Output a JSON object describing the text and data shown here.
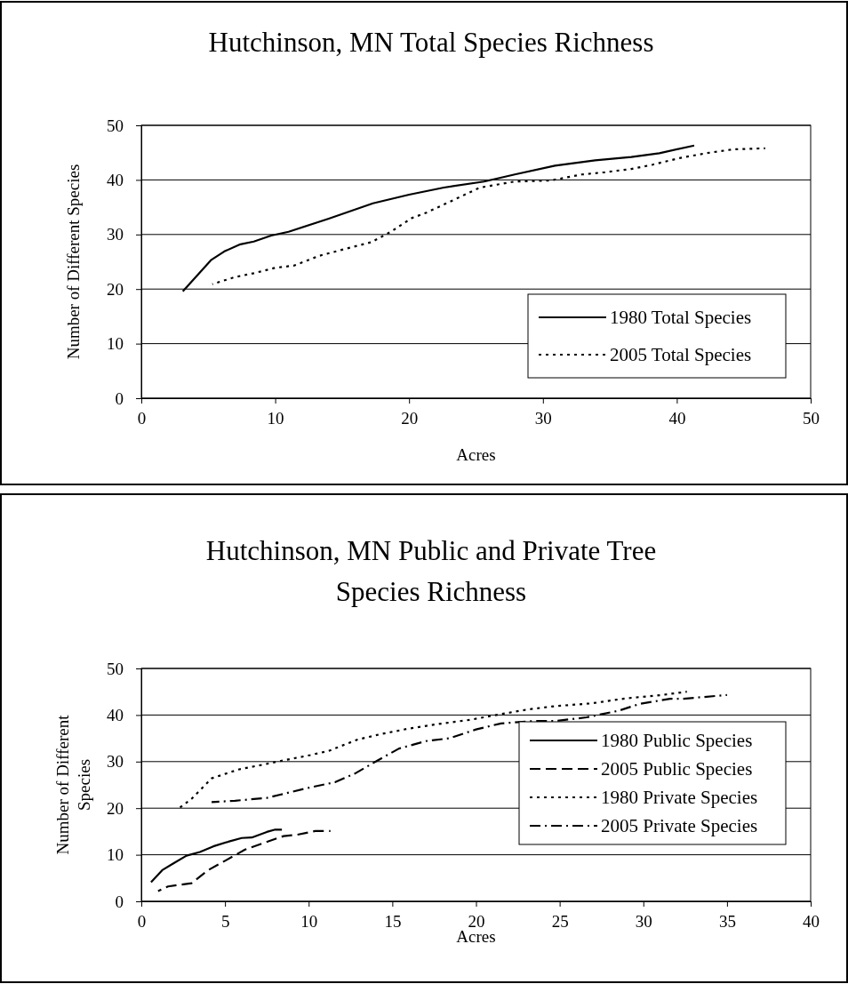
{
  "chart_data": [
    {
      "type": "line",
      "title": "Hutchinson, MN Total Species Richness",
      "xlabel": "Acres",
      "ylabel": "Number of Different Species",
      "xlim": [
        0,
        50
      ],
      "xticks": [
        0,
        10,
        20,
        30,
        40,
        50
      ],
      "ylim": [
        0,
        50
      ],
      "yticks": [
        0,
        10,
        20,
        30,
        40,
        50
      ],
      "grid": "y",
      "legend": "bottom right",
      "series": [
        {
          "name": "1980 Total Species",
          "color": "#000000",
          "line_style": "solid",
          "x": [
            3.1,
            5.2,
            6.2,
            7.4,
            8.4,
            9.7,
            11.0,
            14.0,
            17.3,
            20.0,
            22.6,
            25.6,
            27.9,
            30.9,
            33.9,
            36.6,
            38.7,
            41.3
          ],
          "values": [
            19.6,
            25.3,
            26.9,
            28.2,
            28.7,
            29.8,
            30.5,
            32.9,
            35.7,
            37.3,
            38.6,
            39.7,
            41.0,
            42.6,
            43.6,
            44.2,
            44.9,
            46.3
          ]
        },
        {
          "name": "2005 Total Species",
          "color": "#000000",
          "line_style": "dotted",
          "x": [
            5.3,
            7.0,
            8.4,
            10.0,
            11.4,
            13.3,
            15.3,
            17.2,
            18.7,
            20.2,
            21.3,
            23.3,
            25.3,
            27.9,
            30.6,
            32.9,
            34.6,
            36.6,
            38.2,
            40.2,
            42.2,
            44.2,
            46.6
          ],
          "values": [
            20.9,
            22.2,
            22.9,
            23.9,
            24.3,
            26.1,
            27.4,
            28.6,
            30.6,
            33.0,
            34.0,
            36.3,
            38.6,
            39.7,
            39.9,
            41.0,
            41.4,
            42.0,
            42.8,
            44.0,
            44.9,
            45.6,
            45.8
          ]
        }
      ]
    },
    {
      "type": "line",
      "title": "Hutchinson, MN Public and Private Tree Species Richness",
      "xlabel": "Acres",
      "ylabel": "Number of Different Species",
      "xlim": [
        0,
        40
      ],
      "xticks": [
        0,
        5,
        10,
        15,
        20,
        25,
        30,
        35,
        40
      ],
      "ylim": [
        0,
        50
      ],
      "yticks": [
        0,
        10,
        20,
        30,
        40,
        50
      ],
      "grid": "y",
      "legend": "right",
      "series": [
        {
          "name": "1980 Public Species",
          "color": "#000000",
          "line_style": "solid",
          "x": [
            0.58,
            1.25,
            1.9,
            2.7,
            3.5,
            4.3,
            5.2,
            6.0,
            6.6,
            7.5,
            8.0,
            8.4
          ],
          "values": [
            4.1,
            6.7,
            8.1,
            9.8,
            10.6,
            11.8,
            12.8,
            13.6,
            13.7,
            14.9,
            15.4,
            15.4
          ]
        },
        {
          "name": "2005 Public Species",
          "color": "#000000",
          "line_style": "dashed",
          "x": [
            1.0,
            1.6,
            3.0,
            4.0,
            5.1,
            6.2,
            7.2,
            8.5,
            9.3,
            10.4,
            11.3
          ],
          "values": [
            2.2,
            3.2,
            3.9,
            6.7,
            8.9,
            11.1,
            12.4,
            14.0,
            14.3,
            15.1,
            15.1
          ]
        },
        {
          "name": "1980 Private Species",
          "color": "#000000",
          "line_style": "dotted",
          "x": [
            2.3,
            3.0,
            4.2,
            5.8,
            7.2,
            8.7,
            10.1,
            11.2,
            12.9,
            14.3,
            16.0,
            17.6,
            19.7,
            21.5,
            23.1,
            24.7,
            26.9,
            29.0,
            31.1,
            32.6
          ],
          "values": [
            20.1,
            22.0,
            26.4,
            28.3,
            29.3,
            30.4,
            31.4,
            32.3,
            34.7,
            35.9,
            37.1,
            38.0,
            39.0,
            40.2,
            41.2,
            41.9,
            42.5,
            43.6,
            44.3,
            45.0
          ]
        },
        {
          "name": "2005 Private Species",
          "color": "#000000",
          "line_style": "dashdot",
          "x": [
            4.2,
            5.6,
            7.5,
            8.3,
            9.9,
            11.6,
            12.8,
            14.1,
            15.4,
            17.0,
            18.4,
            20.0,
            21.5,
            23.4,
            24.7,
            26.6,
            28.5,
            29.8,
            31.6,
            32.4,
            35.0
          ],
          "values": [
            21.3,
            21.6,
            22.2,
            22.9,
            24.3,
            25.6,
            27.5,
            30.2,
            32.8,
            34.4,
            35.0,
            36.9,
            38.2,
            38.7,
            38.7,
            39.5,
            40.9,
            42.4,
            43.5,
            43.5,
            44.3
          ]
        }
      ]
    }
  ]
}
